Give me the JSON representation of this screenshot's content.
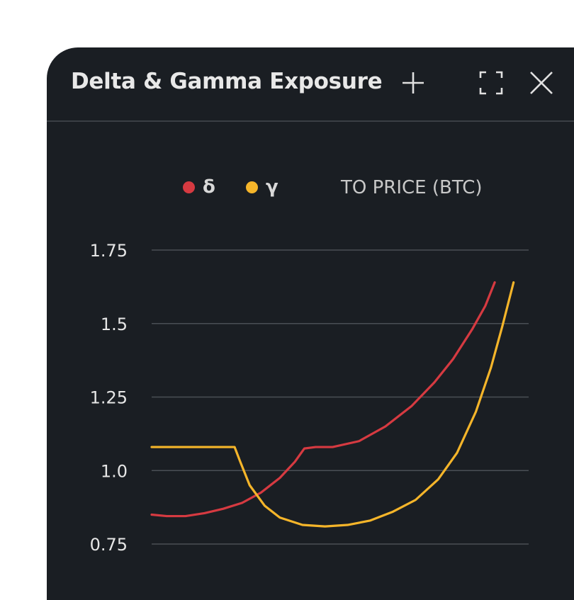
{
  "window": {
    "title": "Delta & Gamma Exposure",
    "icons": [
      "plus-icon",
      "expand-icon",
      "close-icon"
    ]
  },
  "colors": {
    "background": "#1a1e23",
    "grid": "#4a4f55",
    "delta": "#d63a41",
    "gamma": "#f5b52a"
  },
  "chart_data": {
    "type": "line",
    "title": "",
    "xlabel": "",
    "ylabel": "",
    "unit_label": "TO PRICE (BTC)",
    "ylim": [
      0.75,
      1.75
    ],
    "y_ticks": [
      {
        "value": 1.75,
        "label": "1.75"
      },
      {
        "value": 1.5,
        "label": "1.5"
      },
      {
        "value": 1.25,
        "label": "1.25"
      },
      {
        "value": 1.0,
        "label": "1.0"
      },
      {
        "value": 0.75,
        "label": "0.75"
      }
    ],
    "grid": true,
    "legend_position": "top",
    "series": [
      {
        "name": "δ",
        "color": "#d63a41",
        "points": [
          [
            0,
            0.85
          ],
          [
            0.04,
            0.845
          ],
          [
            0.09,
            0.845
          ],
          [
            0.14,
            0.855
          ],
          [
            0.19,
            0.87
          ],
          [
            0.24,
            0.89
          ],
          [
            0.29,
            0.925
          ],
          [
            0.34,
            0.975
          ],
          [
            0.38,
            1.03
          ],
          [
            0.405,
            1.075
          ],
          [
            0.435,
            1.08
          ],
          [
            0.48,
            1.08
          ],
          [
            0.55,
            1.1
          ],
          [
            0.62,
            1.15
          ],
          [
            0.69,
            1.22
          ],
          [
            0.75,
            1.3
          ],
          [
            0.8,
            1.38
          ],
          [
            0.85,
            1.48
          ],
          [
            0.885,
            1.56
          ],
          [
            0.91,
            1.64
          ]
        ]
      },
      {
        "name": "γ",
        "color": "#f5b52a",
        "points": [
          [
            0,
            1.08
          ],
          [
            0.22,
            1.08
          ],
          [
            0.235,
            1.03
          ],
          [
            0.26,
            0.95
          ],
          [
            0.3,
            0.88
          ],
          [
            0.34,
            0.84
          ],
          [
            0.4,
            0.815
          ],
          [
            0.46,
            0.81
          ],
          [
            0.52,
            0.815
          ],
          [
            0.58,
            0.83
          ],
          [
            0.64,
            0.86
          ],
          [
            0.7,
            0.9
          ],
          [
            0.76,
            0.97
          ],
          [
            0.81,
            1.06
          ],
          [
            0.86,
            1.2
          ],
          [
            0.9,
            1.35
          ],
          [
            0.93,
            1.49
          ],
          [
            0.95,
            1.59
          ],
          [
            0.96,
            1.64
          ]
        ]
      }
    ]
  }
}
